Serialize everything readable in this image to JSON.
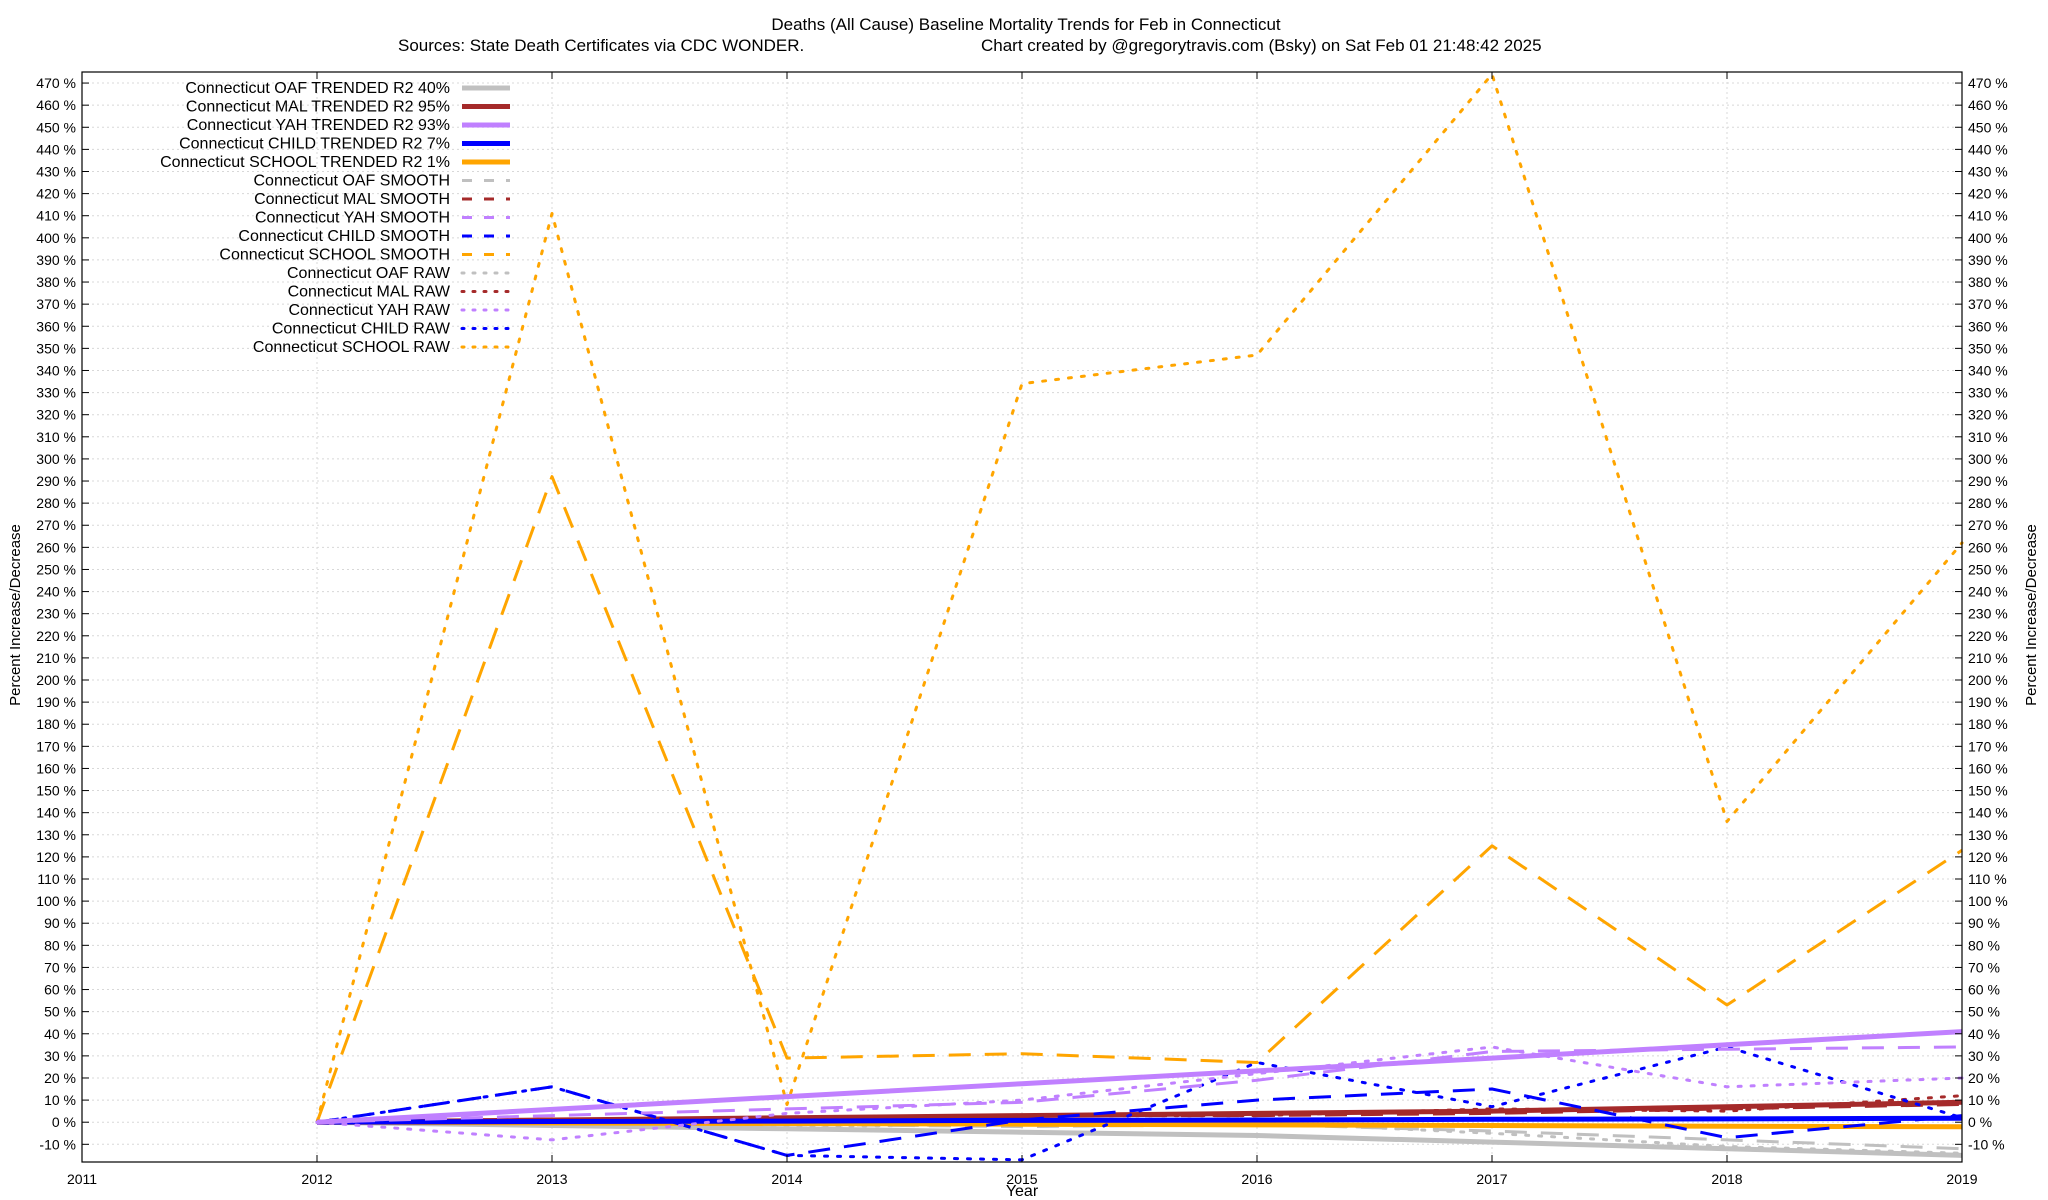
{
  "chart_data": {
    "type": "line",
    "title": "Deaths (All Cause)  Baseline Mortality Trends for Feb in Connecticut",
    "subtitle_left": "Sources: State Death Certificates via CDC WONDER.",
    "subtitle_right": "Chart created by @gregorytravis.com (Bsky) on Sat Feb 01 21:48:42 2025",
    "xlabel": "Year",
    "ylabel": "Percent Increase/Decrease",
    "y2label": "Percent Increase/Decrease",
    "xlim": [
      2011,
      2019
    ],
    "ylim": [
      -18,
      475
    ],
    "xticks": [
      "2011",
      "2012",
      "2013",
      "2014",
      "2015",
      "2016",
      "2017",
      "2018",
      "2019"
    ],
    "ytick_step": 10,
    "ytick_min": -10,
    "ytick_max": 470,
    "ytick_suffix": " %",
    "grid": true,
    "legend_position": "top-left",
    "series": [
      {
        "name": "Connecticut OAF TRENDED R2  40%",
        "color": "#c0c0c0",
        "style": "solid",
        "width": 5,
        "x": [
          2012,
          2013,
          2014,
          2015,
          2016,
          2017,
          2018,
          2019
        ],
        "y": [
          0,
          -1.5,
          -3,
          -4.5,
          -6,
          -9,
          -12,
          -15
        ]
      },
      {
        "name": "Connecticut MAL TRENDED R2  95%",
        "color": "#a52a2a",
        "style": "solid",
        "width": 5,
        "x": [
          2012,
          2013,
          2014,
          2015,
          2016,
          2017,
          2018,
          2019
        ],
        "y": [
          0,
          1,
          2,
          3,
          4,
          5,
          7,
          9
        ]
      },
      {
        "name": "Connecticut YAH TRENDED R2  93%",
        "color": "#c080ff",
        "style": "solid",
        "width": 5,
        "x": [
          2012,
          2013,
          2014,
          2015,
          2016,
          2017,
          2018,
          2019
        ],
        "y": [
          0,
          5.8,
          11.6,
          17.4,
          23.2,
          29,
          35,
          41
        ]
      },
      {
        "name": "Connecticut CHILD TRENDED R2   7%",
        "color": "#0000ff",
        "style": "solid",
        "width": 5,
        "x": [
          2012,
          2013,
          2014,
          2015,
          2016,
          2017,
          2018,
          2019
        ],
        "y": [
          0,
          0.3,
          0.5,
          0.8,
          1,
          1.3,
          1.5,
          1.8
        ]
      },
      {
        "name": "Connecticut SCHOOL TRENDED R2   1%",
        "color": "#ffa500",
        "style": "solid",
        "width": 5,
        "x": [
          2012,
          2013,
          2014,
          2015,
          2016,
          2017,
          2018,
          2019
        ],
        "y": [
          0,
          -0.3,
          -0.6,
          -0.9,
          -1.2,
          -1.5,
          -1.8,
          -2.1
        ]
      },
      {
        "name": "Connecticut OAF SMOOTH",
        "color": "#c0c0c0",
        "style": "dash",
        "width": 3,
        "x": [
          2012,
          2013,
          2014,
          2015,
          2016,
          2017,
          2018,
          2019
        ],
        "y": [
          0,
          -1,
          -1,
          -2,
          -1,
          -4,
          -8,
          -12
        ]
      },
      {
        "name": "Connecticut MAL SMOOTH",
        "color": "#a52a2a",
        "style": "dash",
        "width": 3,
        "x": [
          2012,
          2013,
          2014,
          2015,
          2016,
          2017,
          2018,
          2019
        ],
        "y": [
          0,
          1,
          2,
          3,
          3,
          4,
          6,
          8
        ]
      },
      {
        "name": "Connecticut YAH SMOOTH",
        "color": "#c080ff",
        "style": "dash",
        "width": 3,
        "x": [
          2012,
          2013,
          2014,
          2015,
          2016,
          2017,
          2018,
          2019
        ],
        "y": [
          0,
          3,
          6,
          9,
          19,
          32,
          33,
          34
        ]
      },
      {
        "name": "Connecticut CHILD SMOOTH",
        "color": "#0000ff",
        "style": "dash",
        "width": 3,
        "x": [
          2012,
          2013,
          2014,
          2015,
          2016,
          2017,
          2018,
          2019
        ],
        "y": [
          0,
          16,
          -15,
          1,
          10,
          15,
          -7,
          3
        ]
      },
      {
        "name": "Connecticut SCHOOL SMOOTH",
        "color": "#ffa500",
        "style": "dash",
        "width": 3,
        "x": [
          2012,
          2013,
          2014,
          2015,
          2016,
          2017,
          2018,
          2019
        ],
        "y": [
          0,
          292,
          29,
          31,
          27,
          125,
          53,
          123
        ]
      },
      {
        "name": "Connecticut OAF RAW",
        "color": "#c0c0c0",
        "style": "dot",
        "width": 3,
        "x": [
          2012,
          2013,
          2014,
          2015,
          2016,
          2017,
          2018,
          2019
        ],
        "y": [
          0,
          -1,
          -2,
          -1,
          0,
          -5,
          -11,
          -14
        ]
      },
      {
        "name": "Connecticut MAL RAW",
        "color": "#a52a2a",
        "style": "dot",
        "width": 3,
        "x": [
          2012,
          2013,
          2014,
          2015,
          2016,
          2017,
          2018,
          2019
        ],
        "y": [
          0,
          1,
          1,
          3,
          3,
          6,
          5,
          12
        ]
      },
      {
        "name": "Connecticut YAH RAW",
        "color": "#c080ff",
        "style": "dot",
        "width": 3,
        "x": [
          2012,
          2013,
          2014,
          2015,
          2016,
          2017,
          2018,
          2019
        ],
        "y": [
          0,
          -8,
          4,
          10,
          22,
          34,
          16,
          20
        ]
      },
      {
        "name": "Connecticut CHILD RAW",
        "color": "#0000ff",
        "style": "dot",
        "width": 3,
        "x": [
          2012,
          2013,
          2014,
          2015,
          2016,
          2017,
          2018,
          2019
        ],
        "y": [
          0,
          16,
          -15,
          -17,
          27,
          7,
          34,
          2
        ]
      },
      {
        "name": "Connecticut SCHOOL RAW",
        "color": "#ffa500",
        "style": "dot",
        "width": 3,
        "x": [
          2012,
          2013,
          2014,
          2015,
          2016,
          2017,
          2018,
          2019
        ],
        "y": [
          0,
          411,
          8,
          334,
          347,
          474,
          136,
          262
        ]
      }
    ]
  }
}
